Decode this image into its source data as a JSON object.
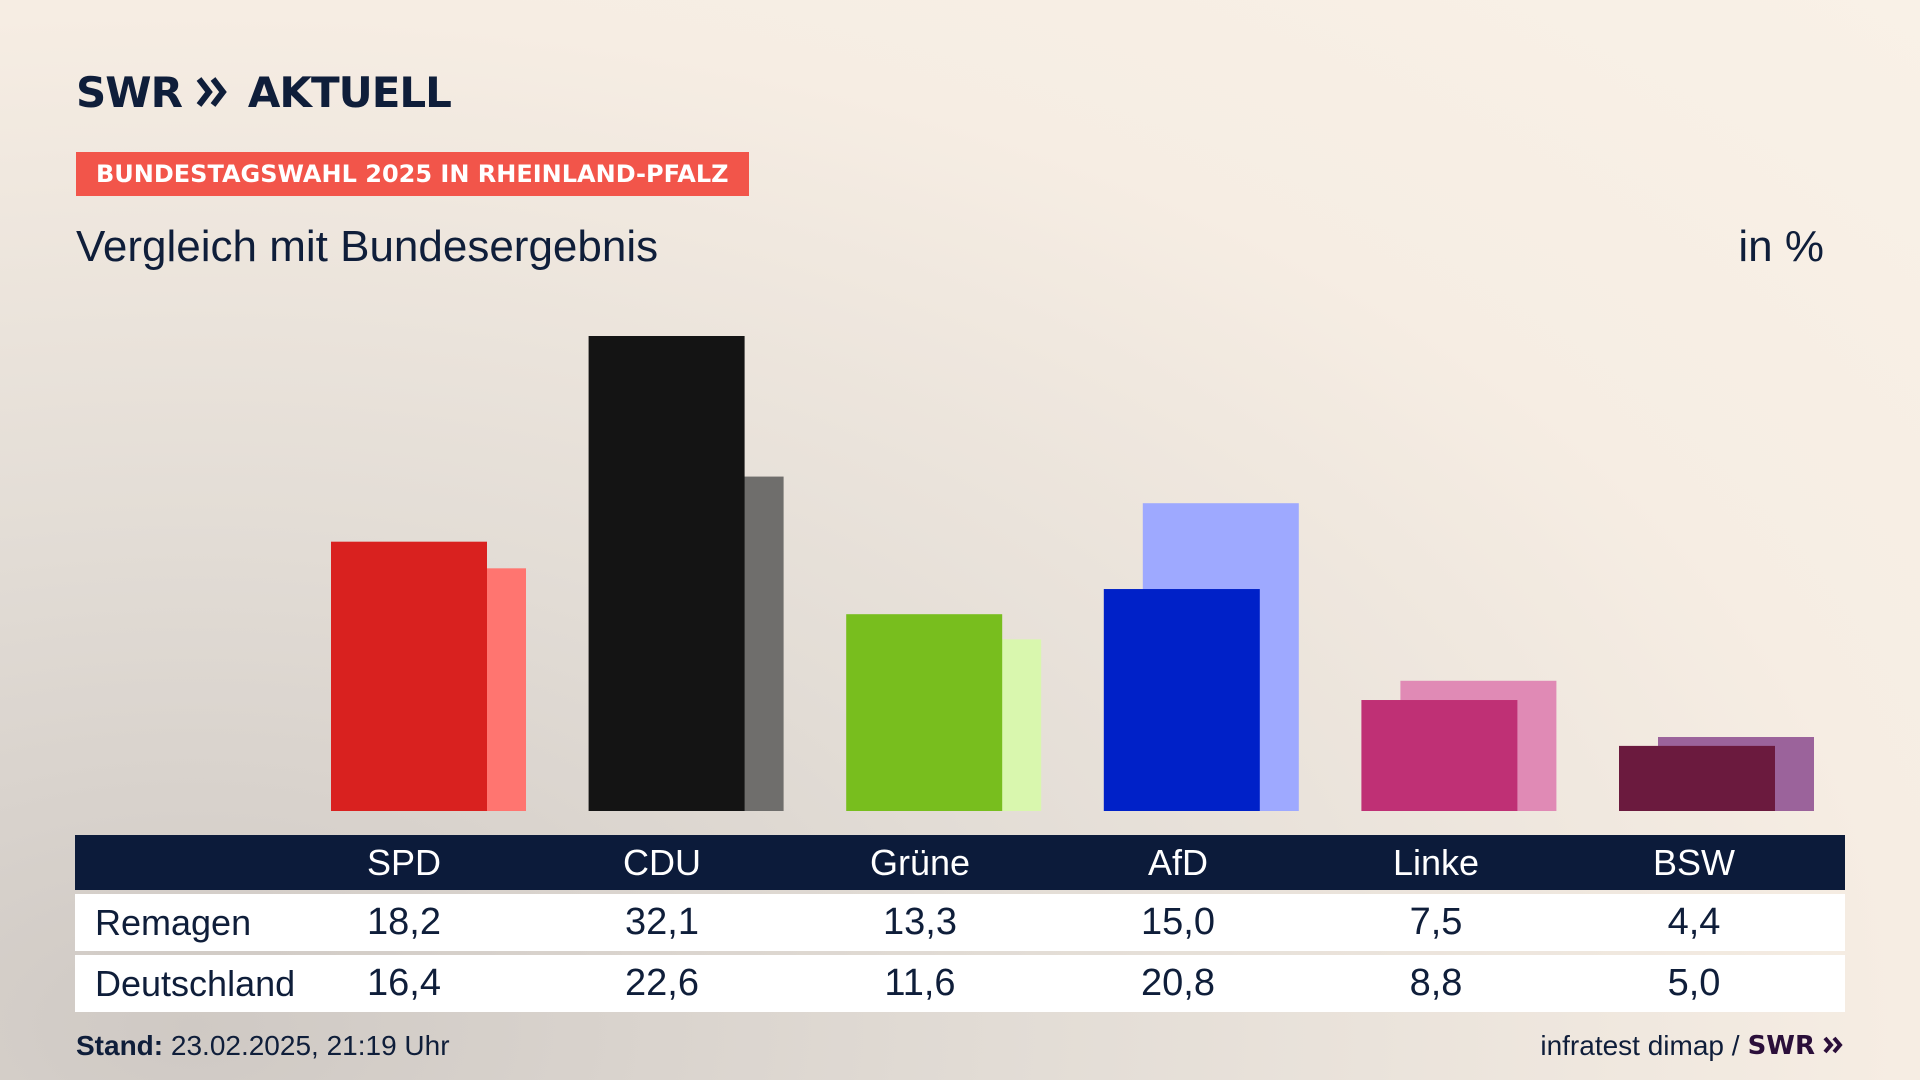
{
  "header": {
    "logo_text": "SWR",
    "logo_suffix": "AKTUELL",
    "badge": "BUNDESTAGSWAHL 2025 IN RHEINLAND-PFALZ",
    "subtitle": "Vergleich mit Bundesergebnis",
    "unit": "in %"
  },
  "chart_data": {
    "type": "bar",
    "categories": [
      "SPD",
      "CDU",
      "Grüne",
      "AfD",
      "Linke",
      "BSW"
    ],
    "series": [
      {
        "name": "Remagen",
        "values": [
          18.2,
          32.1,
          13.3,
          15.0,
          7.5,
          4.4
        ],
        "colors": [
          "#d9211f",
          "#141414",
          "#78be1e",
          "#0021c8",
          "#bf3075",
          "#6b1a3e"
        ]
      },
      {
        "name": "Deutschland",
        "values": [
          16.4,
          22.6,
          11.6,
          20.8,
          8.8,
          5.0
        ],
        "colors": [
          "#ff7570",
          "#6f6e6c",
          "#d9f7ae",
          "#9ea9ff",
          "#e08ab5",
          "#9b639b"
        ]
      }
    ],
    "ylim": [
      0,
      32.1
    ]
  },
  "table": {
    "rows": [
      {
        "label": "Remagen",
        "values": [
          "18,2",
          "32,1",
          "13,3",
          "15,0",
          "7,5",
          "4,4"
        ]
      },
      {
        "label": "Deutschland",
        "values": [
          "16,4",
          "22,6",
          "11,6",
          "20,8",
          "8,8",
          "5,0"
        ]
      }
    ]
  },
  "footer": {
    "stand_label": "Stand:",
    "stand_value": "23.02.2025, 21:19 Uhr",
    "source": "infratest dimap /",
    "source_logo": "SWR"
  },
  "colors": {
    "navy": "#0c1b3a",
    "badge": "#f2554a"
  }
}
